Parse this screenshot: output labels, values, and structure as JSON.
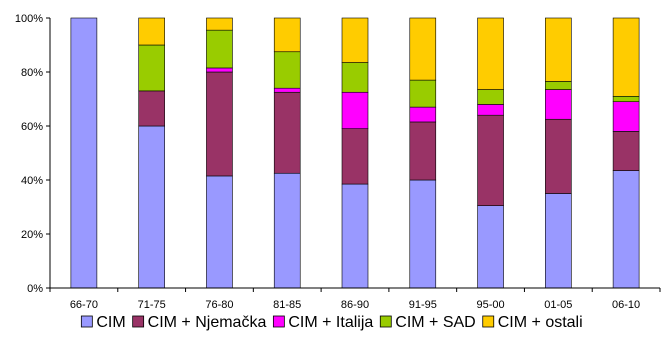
{
  "chart_data": {
    "type": "bar",
    "stacked": true,
    "percent": true,
    "title": "",
    "xlabel": "",
    "ylabel": "",
    "ylim": [
      0,
      100
    ],
    "y_ticks": [
      "0%",
      "20%",
      "40%",
      "60%",
      "80%",
      "100%"
    ],
    "y_tick_values": [
      0,
      20,
      40,
      60,
      80,
      100
    ],
    "grid": false,
    "legend_position": "bottom",
    "categories": [
      "66-70",
      "71-75",
      "76-80",
      "81-85",
      "86-90",
      "91-95",
      "95-00",
      "01-05",
      "06-10"
    ],
    "series": [
      {
        "name": "CIM",
        "color": "#9999ff",
        "values": [
          100,
          60,
          41.5,
          42.5,
          38.5,
          40,
          30.5,
          35,
          43.5
        ]
      },
      {
        "name": "CIM + Njemačka",
        "color": "#993366",
        "values": [
          0,
          13,
          38.5,
          30,
          20.5,
          21.5,
          33.5,
          27.5,
          14.5
        ]
      },
      {
        "name": "CIM + Italija",
        "color": "#ff00ff",
        "values": [
          0,
          0,
          1.5,
          1.5,
          13.5,
          5.5,
          4,
          11,
          11
        ]
      },
      {
        "name": "CIM + SAD",
        "color": "#99cc00",
        "values": [
          0,
          17,
          14,
          13.5,
          11,
          10,
          5.5,
          3,
          2
        ]
      },
      {
        "name": "CIM + ostali",
        "color": "#ffcc00",
        "values": [
          0,
          10,
          4.5,
          12.5,
          16.5,
          23,
          26.5,
          23.5,
          29
        ]
      }
    ]
  }
}
